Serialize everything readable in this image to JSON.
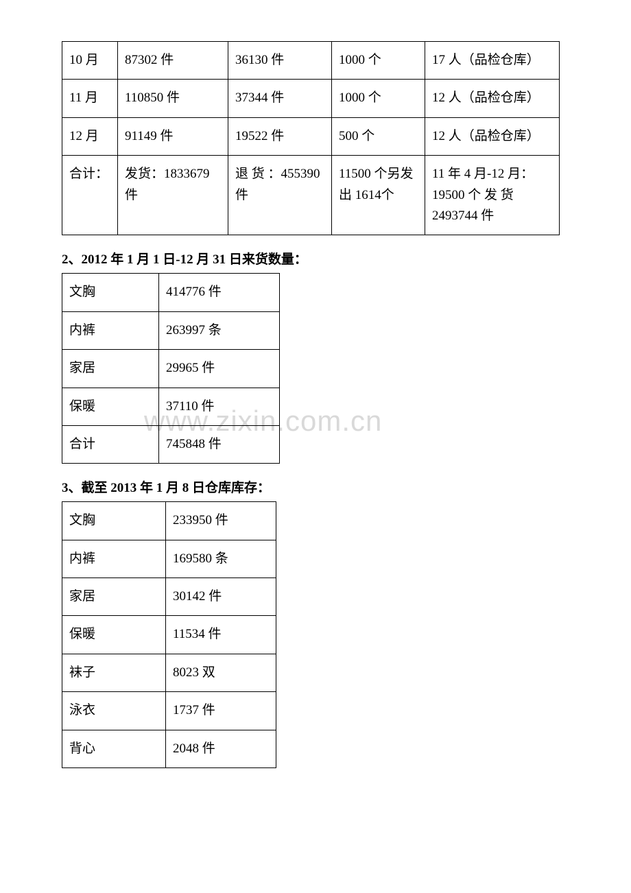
{
  "watermark": "www.zixin.com.cn",
  "table1": {
    "rows": [
      [
        "10 月",
        "87302 件",
        "36130 件",
        "1000 个",
        "17 人（品检仓库）"
      ],
      [
        "11 月",
        "110850 件",
        "37344 件",
        "1000 个",
        "12 人（品检仓库）"
      ],
      [
        "12 月",
        "91149 件",
        "19522 件",
        "500 个",
        "12 人（品检仓库）"
      ],
      [
        "合计：",
        "发货：1833679件",
        "退 货 ：455390 件",
        "11500 个另发出 1614个",
        "11 年 4 月-12 月：19500 个 发 货2493744 件"
      ]
    ]
  },
  "heading2": "2、2012 年 1 月 1 日-12 月 31 日来货数量：",
  "table2": {
    "rows": [
      [
        "文胸",
        "414776 件"
      ],
      [
        "内裤",
        "263997 条"
      ],
      [
        "家居",
        "29965 件"
      ],
      [
        "保暖",
        "37110 件"
      ],
      [
        "合计",
        "745848 件"
      ]
    ]
  },
  "heading3": "3、截至 2013 年 1 月 8 日仓库库存：",
  "table3": {
    "rows": [
      [
        "文胸",
        "233950 件"
      ],
      [
        "内裤",
        "169580 条"
      ],
      [
        "家居",
        "30142 件"
      ],
      [
        "保暖",
        "11534 件"
      ],
      [
        "袜子",
        "8023 双"
      ],
      [
        "泳衣",
        "1737 件"
      ],
      [
        "背心",
        "2048 件"
      ]
    ]
  }
}
